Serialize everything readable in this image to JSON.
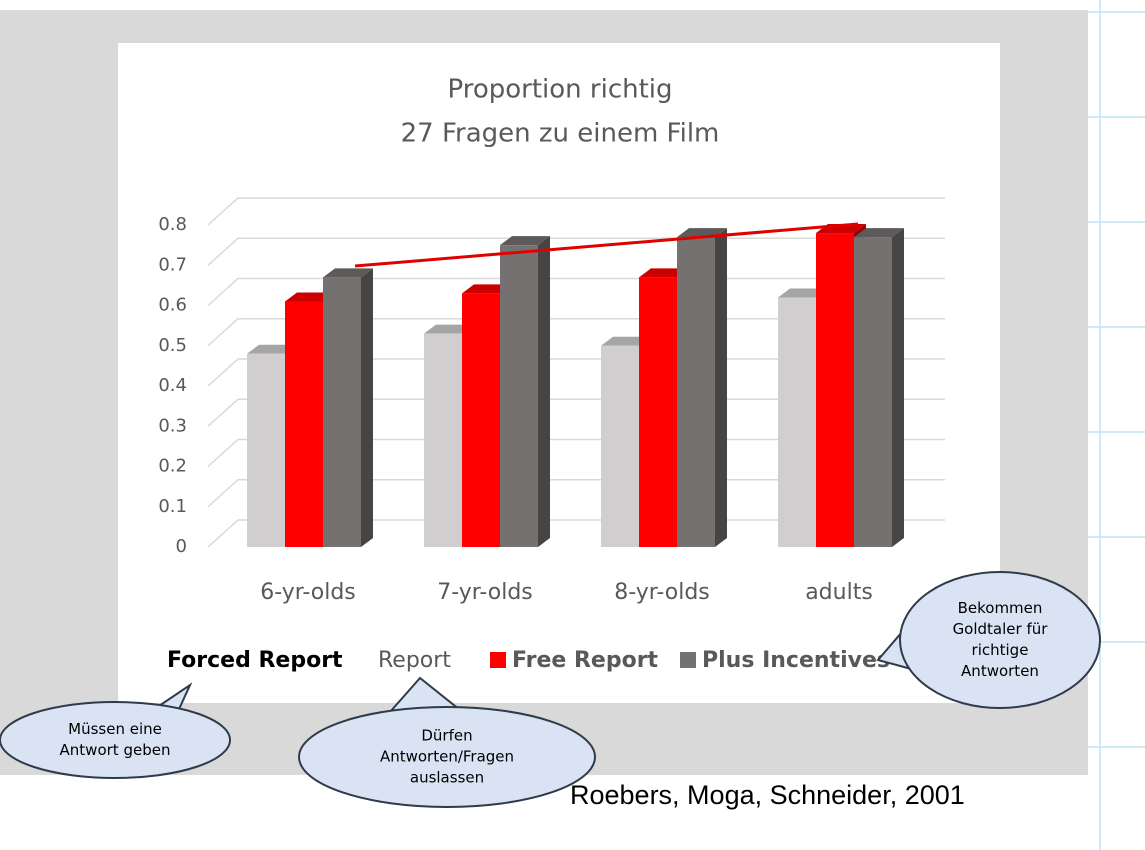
{
  "chart_data": {
    "type": "bar3d",
    "title": "Proportion richtig",
    "subtitle": "27 Fragen zu einem Film",
    "categories": [
      "6-yr-olds",
      "7-yr-olds",
      "8-yr-olds",
      "adults"
    ],
    "series": [
      {
        "name": "Forced Report",
        "color": "#d0cece",
        "values": [
          0.48,
          0.53,
          0.5,
          0.62
        ]
      },
      {
        "name": "Free Report",
        "color": "#ff0000",
        "values": [
          0.61,
          0.63,
          0.67,
          0.78
        ]
      },
      {
        "name": "Plus Incentives",
        "color": "#767171",
        "values": [
          0.67,
          0.75,
          0.77,
          0.77
        ]
      }
    ],
    "legend_fragment": "Report",
    "ylim": [
      0,
      0.8
    ],
    "yticks": [
      0,
      0.1,
      0.2,
      0.3,
      0.4,
      0.5,
      0.6,
      0.7,
      0.8
    ],
    "grid": true,
    "annotations": [
      {
        "lines": [
          "Müssen eine",
          "Antwort geben"
        ]
      },
      {
        "lines": [
          "Dürfen",
          "Antworten/Fragen",
          "auslassen"
        ]
      },
      {
        "lines": [
          "Bekommen",
          "Goldtaler für",
          "richtige",
          "Antworten"
        ]
      }
    ],
    "source": "Roebers, Moga, Schneider, 2001"
  }
}
